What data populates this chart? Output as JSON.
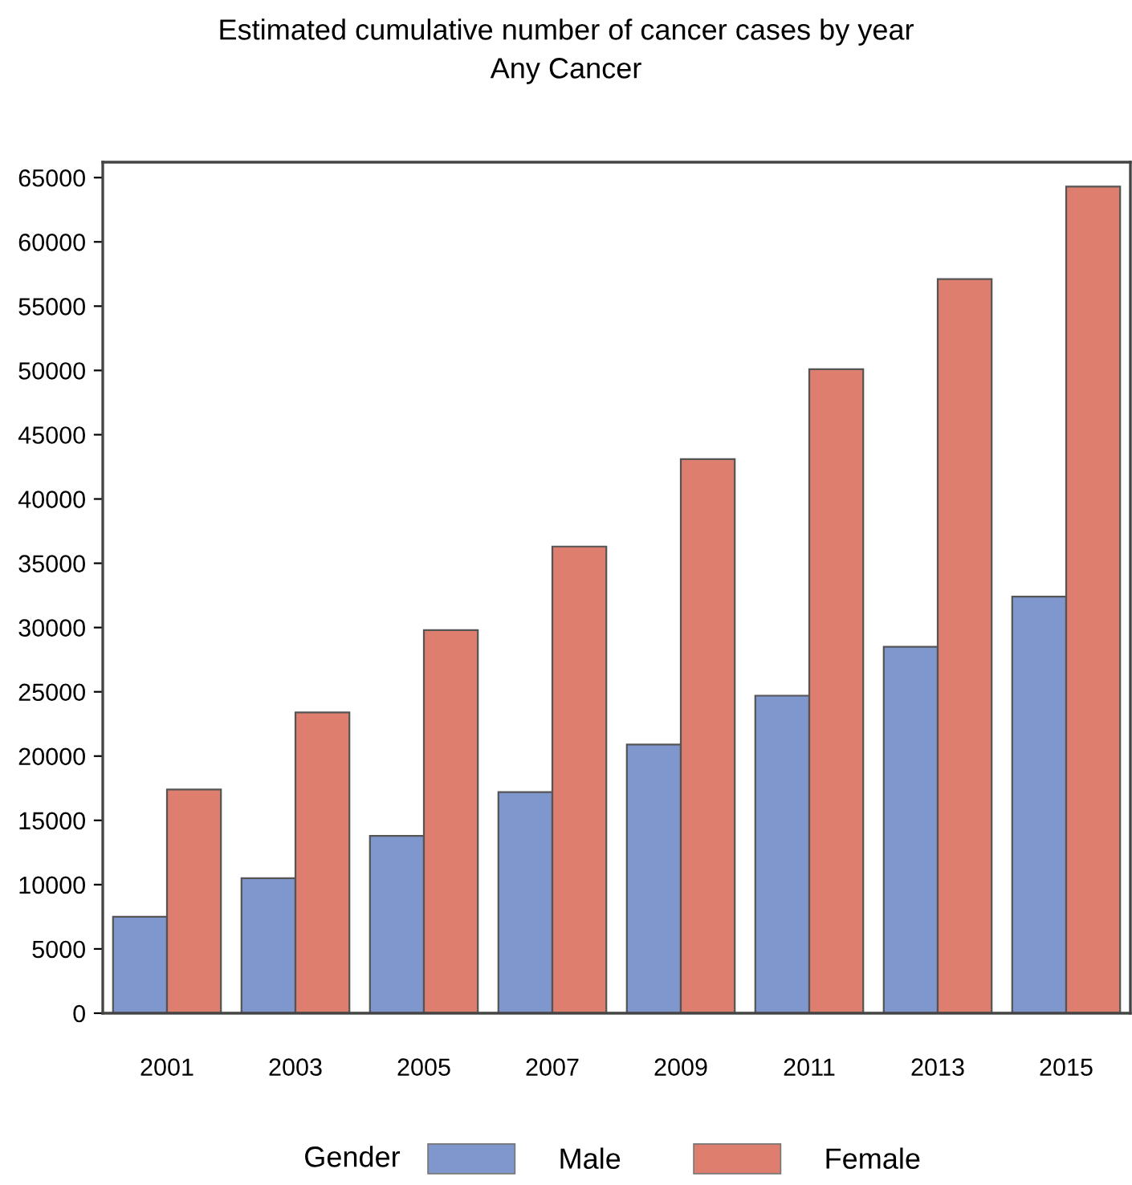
{
  "chart_data": {
    "type": "bar",
    "title": "Estimated cumulative number of cancer cases by year",
    "subtitle": "Any Cancer",
    "categories": [
      "2001",
      "2003",
      "2005",
      "2007",
      "2009",
      "2011",
      "2013",
      "2015"
    ],
    "series": [
      {
        "name": "Male",
        "color": "#7f97cd",
        "values": [
          7500,
          10500,
          13800,
          17200,
          20900,
          24700,
          28500,
          32400
        ]
      },
      {
        "name": "Female",
        "color": "#dd7e6e",
        "values": [
          17400,
          23400,
          29800,
          36300,
          43100,
          50100,
          57100,
          64300
        ]
      }
    ],
    "legend_title": "Gender",
    "legend": "bottom",
    "grid": false,
    "ylim": [
      0,
      66200
    ],
    "yticks": [
      0,
      5000,
      10000,
      15000,
      20000,
      25000,
      30000,
      35000,
      40000,
      45000,
      50000,
      55000,
      60000,
      65000
    ]
  }
}
